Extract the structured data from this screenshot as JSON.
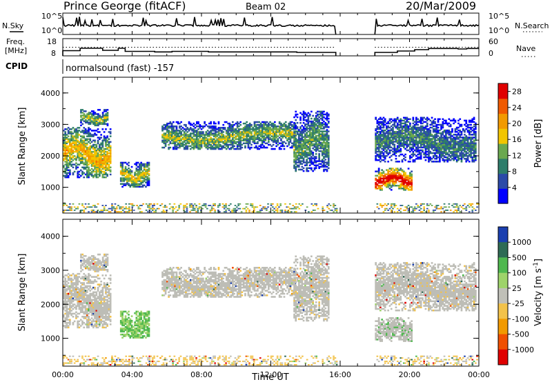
{
  "header": {
    "station": "Prince George (fitACF)",
    "beam": "Beam 02",
    "date": "20/Mar/2009"
  },
  "panel_labels": {
    "nsky": "N.Sky",
    "nsearch": "N.Search",
    "freq_line1": "Freq.",
    "freq_line2": "[MHz]",
    "nave": "Nave",
    "cpid": "CPID",
    "cpid_text": "normalsound (fast) -157"
  },
  "small_axes": {
    "noise_left_ticks": [
      "10^5",
      "10^0"
    ],
    "noise_right_ticks": [
      "10^5",
      "10^0"
    ],
    "freq_left_ticks": [
      "18",
      "8"
    ],
    "freq_right_ticks": [
      "60",
      "0"
    ]
  },
  "colors": {
    "power_scale": [
      "#0000ff",
      "#2b4aa8",
      "#2e7d6b",
      "#6aa84f",
      "#f2c500",
      "#f29a00",
      "#f05a00",
      "#e00000"
    ],
    "velocity_scale": [
      "#e00000",
      "#f05000",
      "#f29a00",
      "#f2c24a",
      "#c0c0b8",
      "#9ed36a",
      "#4fb84f",
      "#2e6b55",
      "#1a3fb0"
    ],
    "ground_scatter": "#bdbdb6"
  },
  "chart_data": [
    {
      "type": "heatmap",
      "panel": "power",
      "xlabel": "",
      "ylabel": "Slant Range [km]",
      "xlim": [
        "00:00",
        "24:00"
      ],
      "ylim": [
        180,
        4500
      ],
      "yticks": [
        "1000",
        "2000",
        "3000",
        "4000"
      ],
      "data_gap": [
        "15:45",
        "18:00"
      ],
      "colorbar": {
        "label": "Power [dB]",
        "ticks": [
          "4",
          "8",
          "12",
          "16",
          "20",
          "24",
          "28"
        ],
        "range": [
          0,
          30
        ]
      },
      "echo_regions": [
        {
          "t": [
            0.0,
            2.7
          ],
          "range": [
            1300,
            2900
          ],
          "level": 16
        },
        {
          "t": [
            1.0,
            2.6
          ],
          "range": [
            2950,
            3450
          ],
          "level": 12
        },
        {
          "t": [
            3.3,
            5.0
          ],
          "range": [
            1000,
            1800
          ],
          "level": 14
        },
        {
          "t": [
            5.7,
            13.4
          ],
          "range": [
            2200,
            3100
          ],
          "level": 12
        },
        {
          "t": [
            13.3,
            15.3
          ],
          "range": [
            1500,
            3400
          ],
          "level": 10
        },
        {
          "t": [
            18.0,
            20.1
          ],
          "range": [
            900,
            1600
          ],
          "level": 26
        },
        {
          "t": [
            18.0,
            23.8
          ],
          "range": [
            1800,
            3200
          ],
          "level": 8
        }
      ]
    },
    {
      "type": "heatmap",
      "panel": "velocity",
      "xlabel": "Time UT",
      "ylabel": "Slant Range [km]",
      "xlim": [
        "00:00",
        "24:00"
      ],
      "ylim": [
        180,
        4500
      ],
      "xticks": [
        "00:00",
        "04:00",
        "08:00",
        "12:00",
        "16:00",
        "20:00",
        "00:00"
      ],
      "yticks": [
        "1000",
        "2000",
        "3000",
        "4000"
      ],
      "data_gap": [
        "15:45",
        "18:00"
      ],
      "colorbar": {
        "label": "Velocity [m s^-1]",
        "ticks": [
          "1000",
          "500",
          "100",
          "25",
          "-25",
          "-100",
          "-500",
          "-1000"
        ]
      }
    }
  ]
}
